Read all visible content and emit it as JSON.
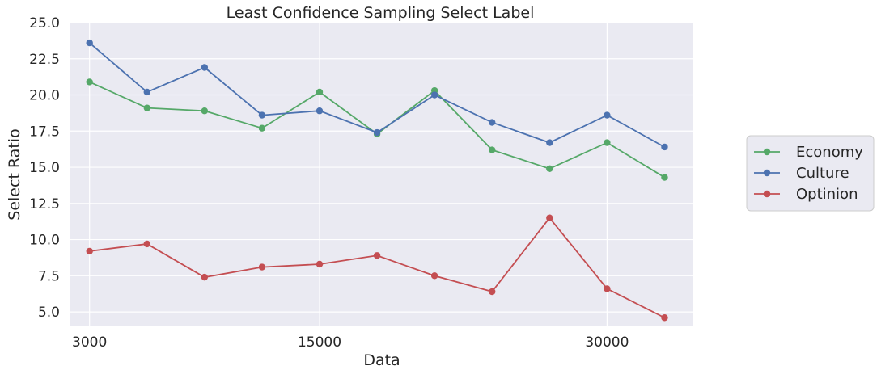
{
  "chart_data": {
    "type": "line",
    "title": "Least Confidence Sampling Select Label",
    "xlabel": "Data",
    "ylabel": "Select Ratio",
    "x": [
      3000,
      6000,
      9000,
      12000,
      15000,
      18000,
      21000,
      24000,
      27000,
      30000,
      33000
    ],
    "x_ticks": [
      3000,
      15000,
      30000
    ],
    "x_tick_labels": [
      "3000",
      "15000",
      "30000"
    ],
    "xlim": [
      2000,
      34500
    ],
    "ylim": [
      4.0,
      25.0
    ],
    "y_ticks": [
      5.0,
      7.5,
      10.0,
      12.5,
      15.0,
      17.5,
      20.0,
      22.5,
      25.0
    ],
    "y_tick_labels": [
      "5.0",
      "7.5",
      "10.0",
      "12.5",
      "15.0",
      "17.5",
      "20.0",
      "22.5",
      "25.0"
    ],
    "grid": true,
    "legend_position": "right",
    "series": [
      {
        "name": "Economy",
        "color": "#55a868",
        "values": [
          20.9,
          19.1,
          18.9,
          17.7,
          20.2,
          17.3,
          20.3,
          16.2,
          14.9,
          16.7,
          14.3
        ]
      },
      {
        "name": "Culture",
        "color": "#4c72b0",
        "values": [
          23.6,
          20.2,
          21.9,
          18.6,
          18.9,
          17.4,
          20.0,
          18.1,
          16.7,
          18.6,
          16.4
        ]
      },
      {
        "name": "Optinion",
        "color": "#c44e52",
        "values": [
          9.2,
          9.7,
          7.4,
          8.1,
          8.3,
          8.9,
          7.5,
          6.4,
          11.5,
          6.6,
          4.6
        ]
      }
    ]
  },
  "style": {
    "plot_background": "#eaeaf2",
    "grid_color": "#ffffff",
    "legend_background": "#eaeaf2",
    "legend_border": "#cccccc"
  }
}
